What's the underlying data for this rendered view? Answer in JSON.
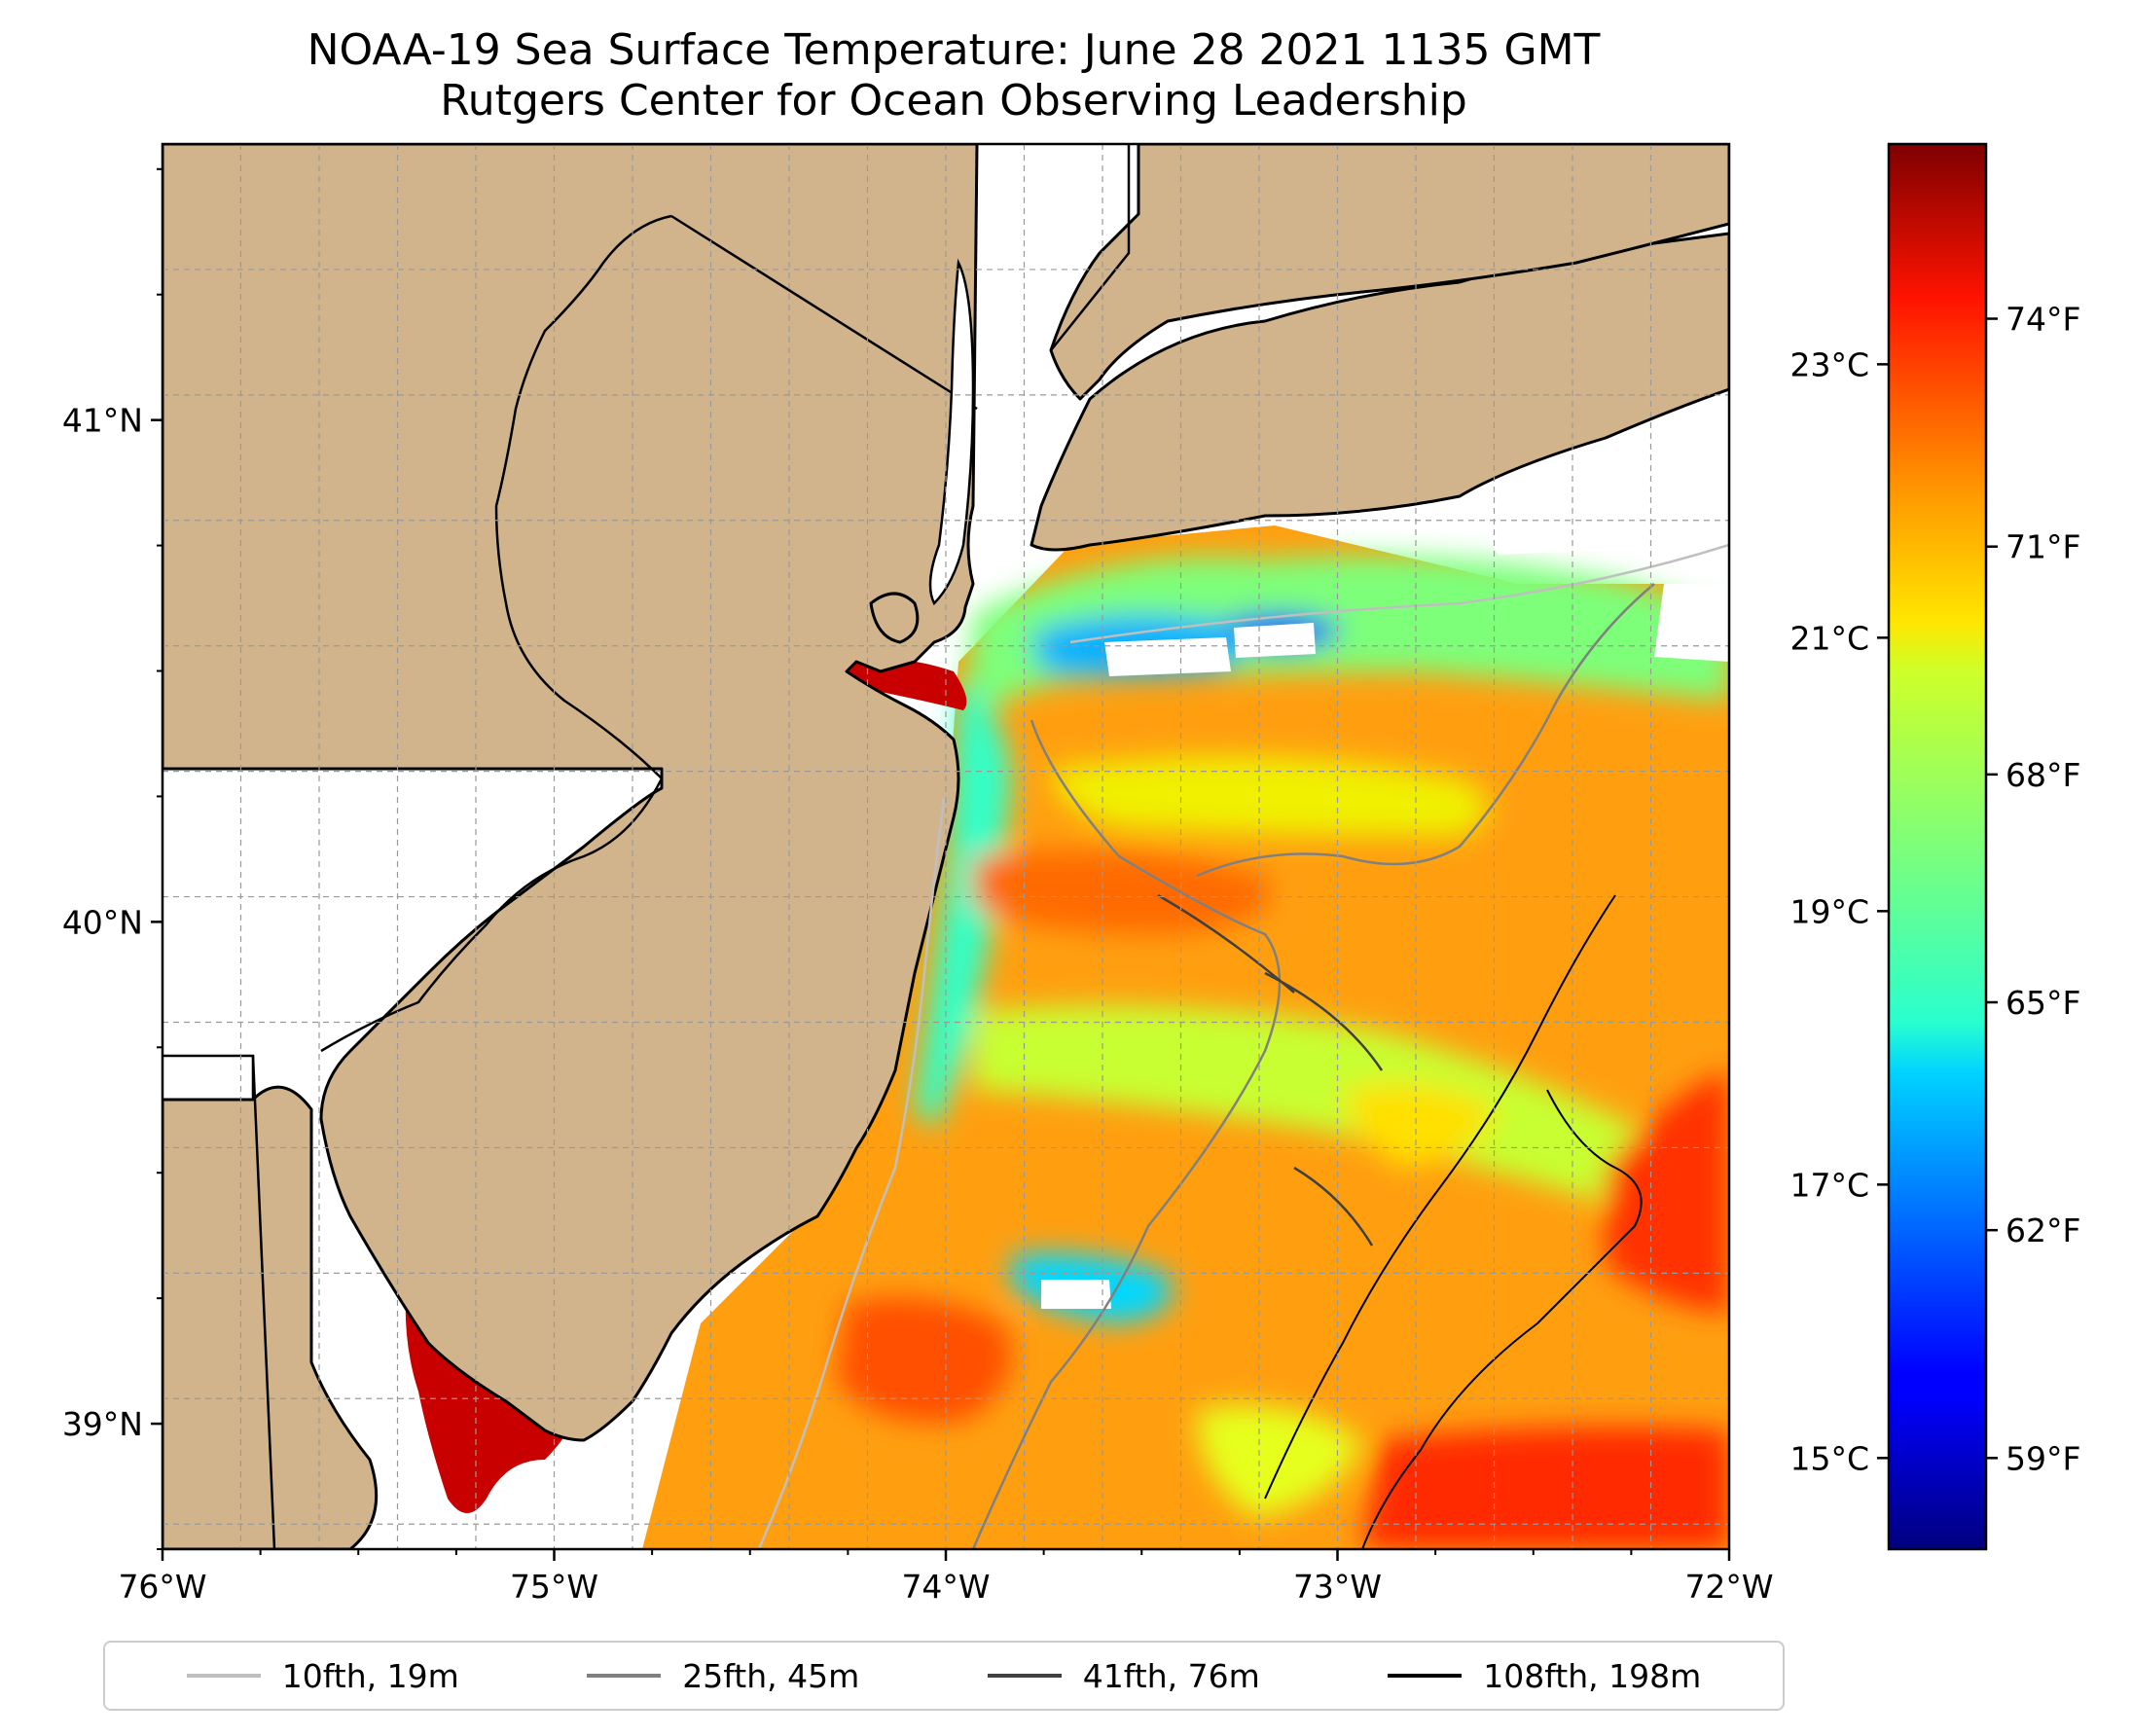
{
  "title": {
    "line1": "NOAA-19 Sea Surface Temperature: June 28 2021 1135 GMT",
    "line2": "Rutgers Center for Ocean Observing Leadership"
  },
  "map": {
    "lon_range": [
      -76,
      -72
    ],
    "lat_range": [
      38.75,
      41.55
    ],
    "lon_ticks": [
      {
        "value": -76,
        "label": "76°W"
      },
      {
        "value": -75,
        "label": "75°W"
      },
      {
        "value": -74,
        "label": "74°W"
      },
      {
        "value": -73,
        "label": "73°W"
      },
      {
        "value": -72,
        "label": "72°W"
      }
    ],
    "lat_ticks": [
      {
        "value": 39,
        "label": "39°N"
      },
      {
        "value": 40,
        "label": "40°N"
      },
      {
        "value": 41,
        "label": "41°N"
      }
    ],
    "grid": true,
    "land_color": "#d2b48c",
    "no_data_color": "#ffffff"
  },
  "colorbar": {
    "colormap": "jet",
    "range_f": [
      57.8,
      76.3
    ],
    "celsius_ticks": [
      {
        "value": 15,
        "label": "15°C"
      },
      {
        "value": 17,
        "label": "17°C"
      },
      {
        "value": 19,
        "label": "19°C"
      },
      {
        "value": 21,
        "label": "21°C"
      },
      {
        "value": 23,
        "label": "23°C"
      }
    ],
    "fahrenheit_ticks": [
      {
        "value": 59,
        "label": "59°F"
      },
      {
        "value": 62,
        "label": "62°F"
      },
      {
        "value": 65,
        "label": "65°F"
      },
      {
        "value": 68,
        "label": "68°F"
      },
      {
        "value": 71,
        "label": "71°F"
      },
      {
        "value": 74,
        "label": "74°F"
      }
    ]
  },
  "legend": {
    "placement": "bottom",
    "items": [
      {
        "label": "10fth, 19m",
        "color": "#bfbfbf"
      },
      {
        "label": "25fth, 45m",
        "color": "#808080"
      },
      {
        "label": "41fth, 76m",
        "color": "#404040"
      },
      {
        "label": "108fth, 198m",
        "color": "#000000"
      }
    ]
  }
}
